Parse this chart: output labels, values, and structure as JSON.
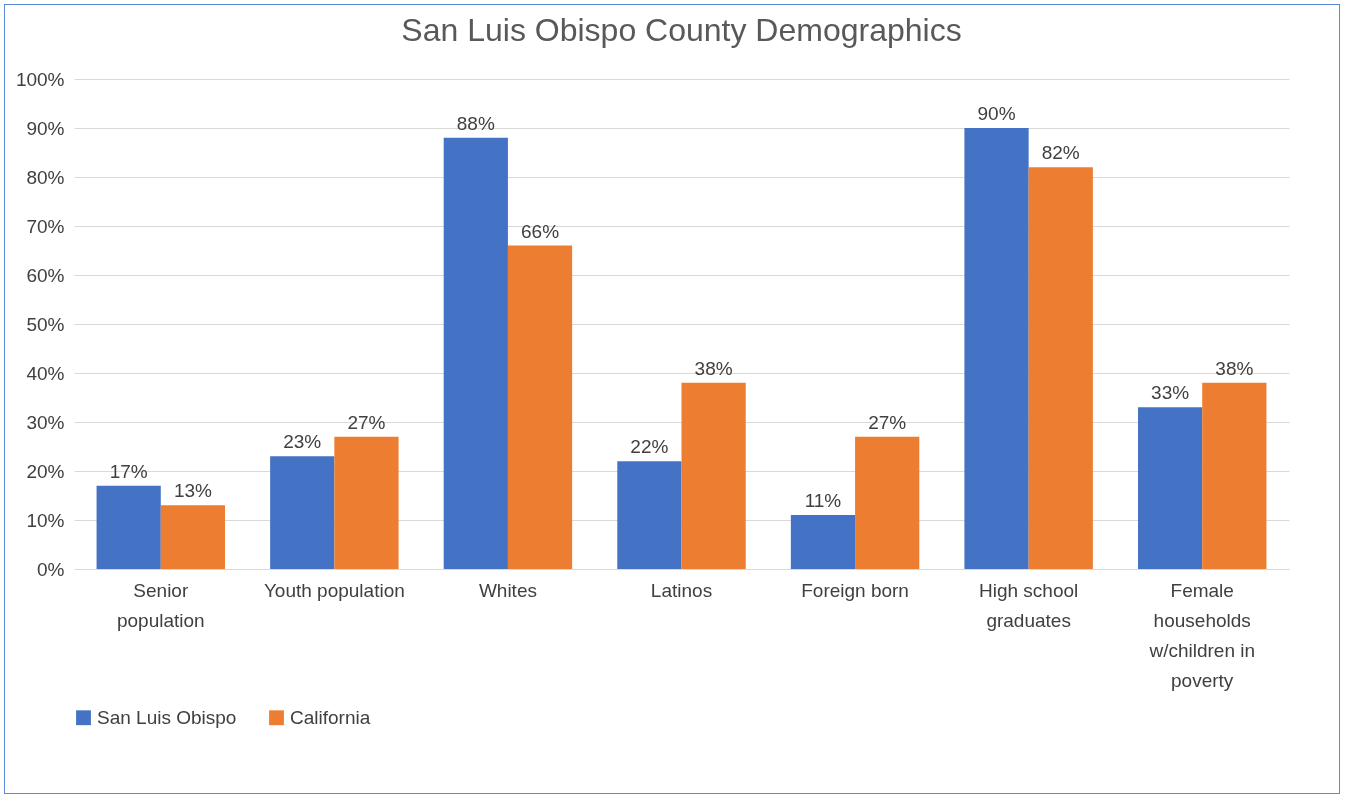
{
  "chart_data": {
    "type": "bar",
    "title": "San Luis Obispo County Demographics",
    "categories": [
      "Senior population",
      "Youth population",
      "Whites",
      "Latinos",
      "Foreign born",
      "High school graduates",
      "Female households w/children in poverty"
    ],
    "series": [
      {
        "name": "San Luis Obispo",
        "color": "#4472c4",
        "values": [
          17,
          23,
          88,
          22,
          11,
          90,
          33
        ],
        "value_labels": [
          "17%",
          "23%",
          "88%",
          "22%",
          "11%",
          "90%",
          "33%"
        ]
      },
      {
        "name": "California",
        "color": "#ed7d31",
        "values": [
          13,
          27,
          66,
          38,
          27,
          82,
          38
        ],
        "value_labels": [
          "13%",
          "27%",
          "66%",
          "38%",
          "27%",
          "82%",
          "38%"
        ]
      }
    ],
    "ylim": [
      0,
      100
    ],
    "yticks": [
      {
        "value": 0,
        "label": "0%"
      },
      {
        "value": 10,
        "label": "10%"
      },
      {
        "value": 20,
        "label": "20%"
      },
      {
        "value": 30,
        "label": "30%"
      },
      {
        "value": 40,
        "label": "40%"
      },
      {
        "value": 50,
        "label": "50%"
      },
      {
        "value": 60,
        "label": "60%"
      },
      {
        "value": 70,
        "label": "70%"
      },
      {
        "value": 80,
        "label": "80%"
      },
      {
        "value": 90,
        "label": "90%"
      },
      {
        "value": 100,
        "label": "100%"
      }
    ],
    "grid": "y",
    "legend": "bottom"
  }
}
